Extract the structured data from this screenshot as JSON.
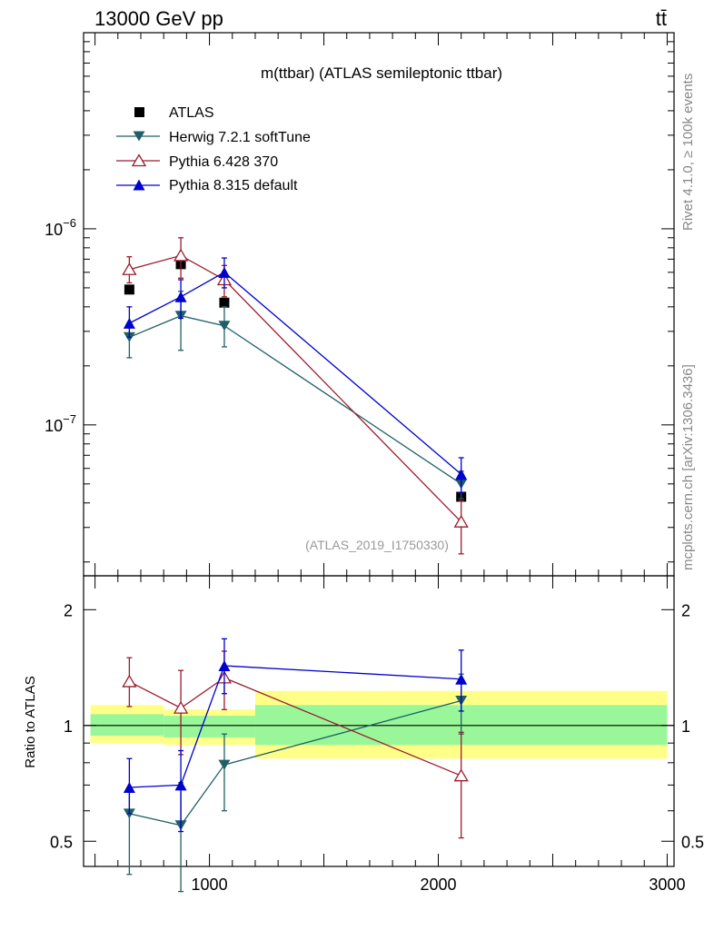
{
  "header": {
    "energy_label": "13000 GeV pp",
    "process_label": "tt̄"
  },
  "side_labels": {
    "rivet": "Rivet 4.1.0, ≥ 100k events",
    "source": "mcplots.cern.ch [arXiv:1306.3436]"
  },
  "chart_data": [
    {
      "type": "scatter",
      "title": "m(ttbar) (ATLAS semileptonic ttbar)",
      "analysis_id": "(ATLAS_2019_I1750330)",
      "xlabel": "",
      "ylabel": "",
      "yscale": "log",
      "xlim": [
        450,
        3030
      ],
      "ylim": [
        1.7e-08,
        1e-05
      ],
      "ytick_labels": [
        {
          "value": 1e-06,
          "mantissa": "10",
          "exponent": "−6"
        },
        {
          "value": 1e-07,
          "mantissa": "10",
          "exponent": "−7"
        }
      ],
      "legend": {
        "placement": "top-left",
        "entries": [
          "ATLAS",
          "Herwig 7.2.1 softTune",
          "Pythia 6.428 370",
          "Pythia 8.315 default"
        ]
      },
      "series": [
        {
          "name": "ATLAS",
          "color": "#000000",
          "marker": "square",
          "points": [
            {
              "x": 650,
              "y": 4.9e-07
            },
            {
              "x": 875,
              "y": 6.6e-07
            },
            {
              "x": 1065,
              "y": 4.2e-07
            },
            {
              "x": 2100,
              "y": 4.3e-08
            }
          ]
        },
        {
          "name": "Herwig 7.2.1 softTune",
          "color": "#1f5f66",
          "marker": "triangle-down",
          "points": [
            {
              "x": 650,
              "y": 2.8e-07,
              "ylo": 2.2e-07,
              "yhi": 3.3e-07
            },
            {
              "x": 875,
              "y": 3.6e-07,
              "ylo": 2.4e-07,
              "yhi": 4.8e-07
            },
            {
              "x": 1065,
              "y": 3.2e-07,
              "ylo": 2.5e-07,
              "yhi": 4e-07
            },
            {
              "x": 2100,
              "y": 5e-08,
              "ylo": 4.2e-08,
              "yhi": 5.8e-08
            }
          ]
        },
        {
          "name": "Pythia 6.428 370",
          "color": "#9b1b30",
          "marker": "triangle-up-open",
          "points": [
            {
              "x": 650,
              "y": 6.2e-07,
              "ylo": 5.3e-07,
              "yhi": 7.2e-07
            },
            {
              "x": 875,
              "y": 7.3e-07,
              "ylo": 5.6e-07,
              "yhi": 9e-07
            },
            {
              "x": 1065,
              "y": 5.5e-07,
              "ylo": 4.5e-07,
              "yhi": 6.5e-07
            },
            {
              "x": 2100,
              "y": 3.2e-08,
              "ylo": 2.2e-08,
              "yhi": 4.1e-08
            }
          ]
        },
        {
          "name": "Pythia 8.315 default",
          "color": "#0000cc",
          "marker": "triangle-up",
          "points": [
            {
              "x": 650,
              "y": 3.3e-07,
              "ylo": 2.8e-07,
              "yhi": 4e-07
            },
            {
              "x": 875,
              "y": 4.5e-07,
              "ylo": 3.5e-07,
              "yhi": 5.5e-07
            },
            {
              "x": 1065,
              "y": 6e-07,
              "ylo": 5e-07,
              "yhi": 7.1e-07
            },
            {
              "x": 2100,
              "y": 5.6e-08,
              "ylo": 4.5e-08,
              "yhi": 6.8e-08
            }
          ]
        }
      ]
    },
    {
      "type": "scatter",
      "title": "",
      "xlabel": "",
      "ylabel": "Ratio to ATLAS",
      "yscale": "log",
      "xlim": [
        450,
        3030
      ],
      "ylim": [
        0.43,
        2.45
      ],
      "x_tick_labels": [
        1000,
        2000,
        3000
      ],
      "y_tick_labels": [
        "0.5",
        "1",
        "2"
      ],
      "bands": [
        {
          "x0": 480,
          "x1": 800,
          "inner": [
            0.94,
            1.07
          ],
          "outer": [
            0.9,
            1.13
          ]
        },
        {
          "x0": 800,
          "x1": 1200,
          "inner": [
            0.93,
            1.06
          ],
          "outer": [
            0.89,
            1.1
          ]
        },
        {
          "x0": 1200,
          "x1": 3000,
          "inner": [
            0.89,
            1.13
          ],
          "outer": [
            0.82,
            1.23
          ]
        }
      ],
      "series": [
        {
          "name": "Herwig 7.2.1 softTune",
          "color": "#1f5f66",
          "marker": "triangle-down",
          "points": [
            {
              "x": 650,
              "y": 0.59,
              "ylo": 0.41,
              "yhi": 0.69
            },
            {
              "x": 875,
              "y": 0.55,
              "ylo": 0.37,
              "yhi": 0.71
            },
            {
              "x": 1065,
              "y": 0.79,
              "ylo": 0.6,
              "yhi": 0.95
            },
            {
              "x": 2100,
              "y": 1.16,
              "ylo": 0.95,
              "yhi": 1.36
            }
          ]
        },
        {
          "name": "Pythia 6.428 370",
          "color": "#9b1b30",
          "marker": "triangle-up-open",
          "points": [
            {
              "x": 650,
              "y": 1.3,
              "ylo": 1.12,
              "yhi": 1.5
            },
            {
              "x": 875,
              "y": 1.11,
              "ylo": 0.84,
              "yhi": 1.39
            },
            {
              "x": 1065,
              "y": 1.33,
              "ylo": 1.1,
              "yhi": 1.56
            },
            {
              "x": 2100,
              "y": 0.74,
              "ylo": 0.51,
              "yhi": 0.96
            }
          ]
        },
        {
          "name": "Pythia 8.315 default",
          "color": "#0000cc",
          "marker": "triangle-up",
          "points": [
            {
              "x": 650,
              "y": 0.69,
              "ylo": 0.59,
              "yhi": 0.82
            },
            {
              "x": 875,
              "y": 0.7,
              "ylo": 0.53,
              "yhi": 0.86
            },
            {
              "x": 1065,
              "y": 1.43,
              "ylo": 1.21,
              "yhi": 1.68
            },
            {
              "x": 2100,
              "y": 1.32,
              "ylo": 1.09,
              "yhi": 1.57
            }
          ]
        }
      ]
    }
  ]
}
